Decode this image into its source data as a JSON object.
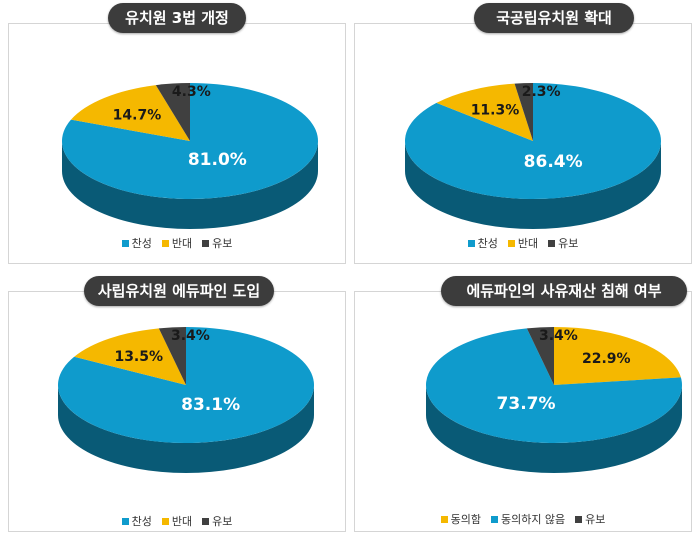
{
  "chart_data": [
    {
      "type": "pie",
      "title": "유치원 3법 개정",
      "categories": [
        "찬성",
        "반대",
        "유보"
      ],
      "values": [
        81.0,
        14.7,
        4.3
      ],
      "labels": [
        "81.0%",
        "14.7%",
        "4.3%"
      ],
      "legend_position": "bottom",
      "colors": [
        "#0f9bcc",
        "#f5b800",
        "#404040"
      ]
    },
    {
      "type": "pie",
      "title": "국공립유치원 확대",
      "categories": [
        "찬성",
        "반대",
        "유보"
      ],
      "values": [
        86.4,
        11.3,
        2.3
      ],
      "labels": [
        "86.4%",
        "11.3%",
        "2.3%"
      ],
      "legend_position": "bottom",
      "colors": [
        "#0f9bcc",
        "#f5b800",
        "#404040"
      ]
    },
    {
      "type": "pie",
      "title": "사립유치원 에듀파인 도입",
      "categories": [
        "찬성",
        "반대",
        "유보"
      ],
      "values": [
        83.1,
        13.5,
        3.4
      ],
      "labels": [
        "83.1%",
        "13.5%",
        "3.4%"
      ],
      "legend_position": "bottom",
      "colors": [
        "#0f9bcc",
        "#f5b800",
        "#404040"
      ]
    },
    {
      "type": "pie",
      "title": "에듀파인의 사유재산 침해 여부",
      "categories": [
        "동의함",
        "동의하지 않음",
        "유보"
      ],
      "values": [
        22.9,
        73.7,
        3.4
      ],
      "labels": [
        "22.9%",
        "73.7%",
        "3.4%"
      ],
      "legend_position": "bottom",
      "colors": [
        "#f5b800",
        "#0f9bcc",
        "#404040"
      ]
    }
  ]
}
